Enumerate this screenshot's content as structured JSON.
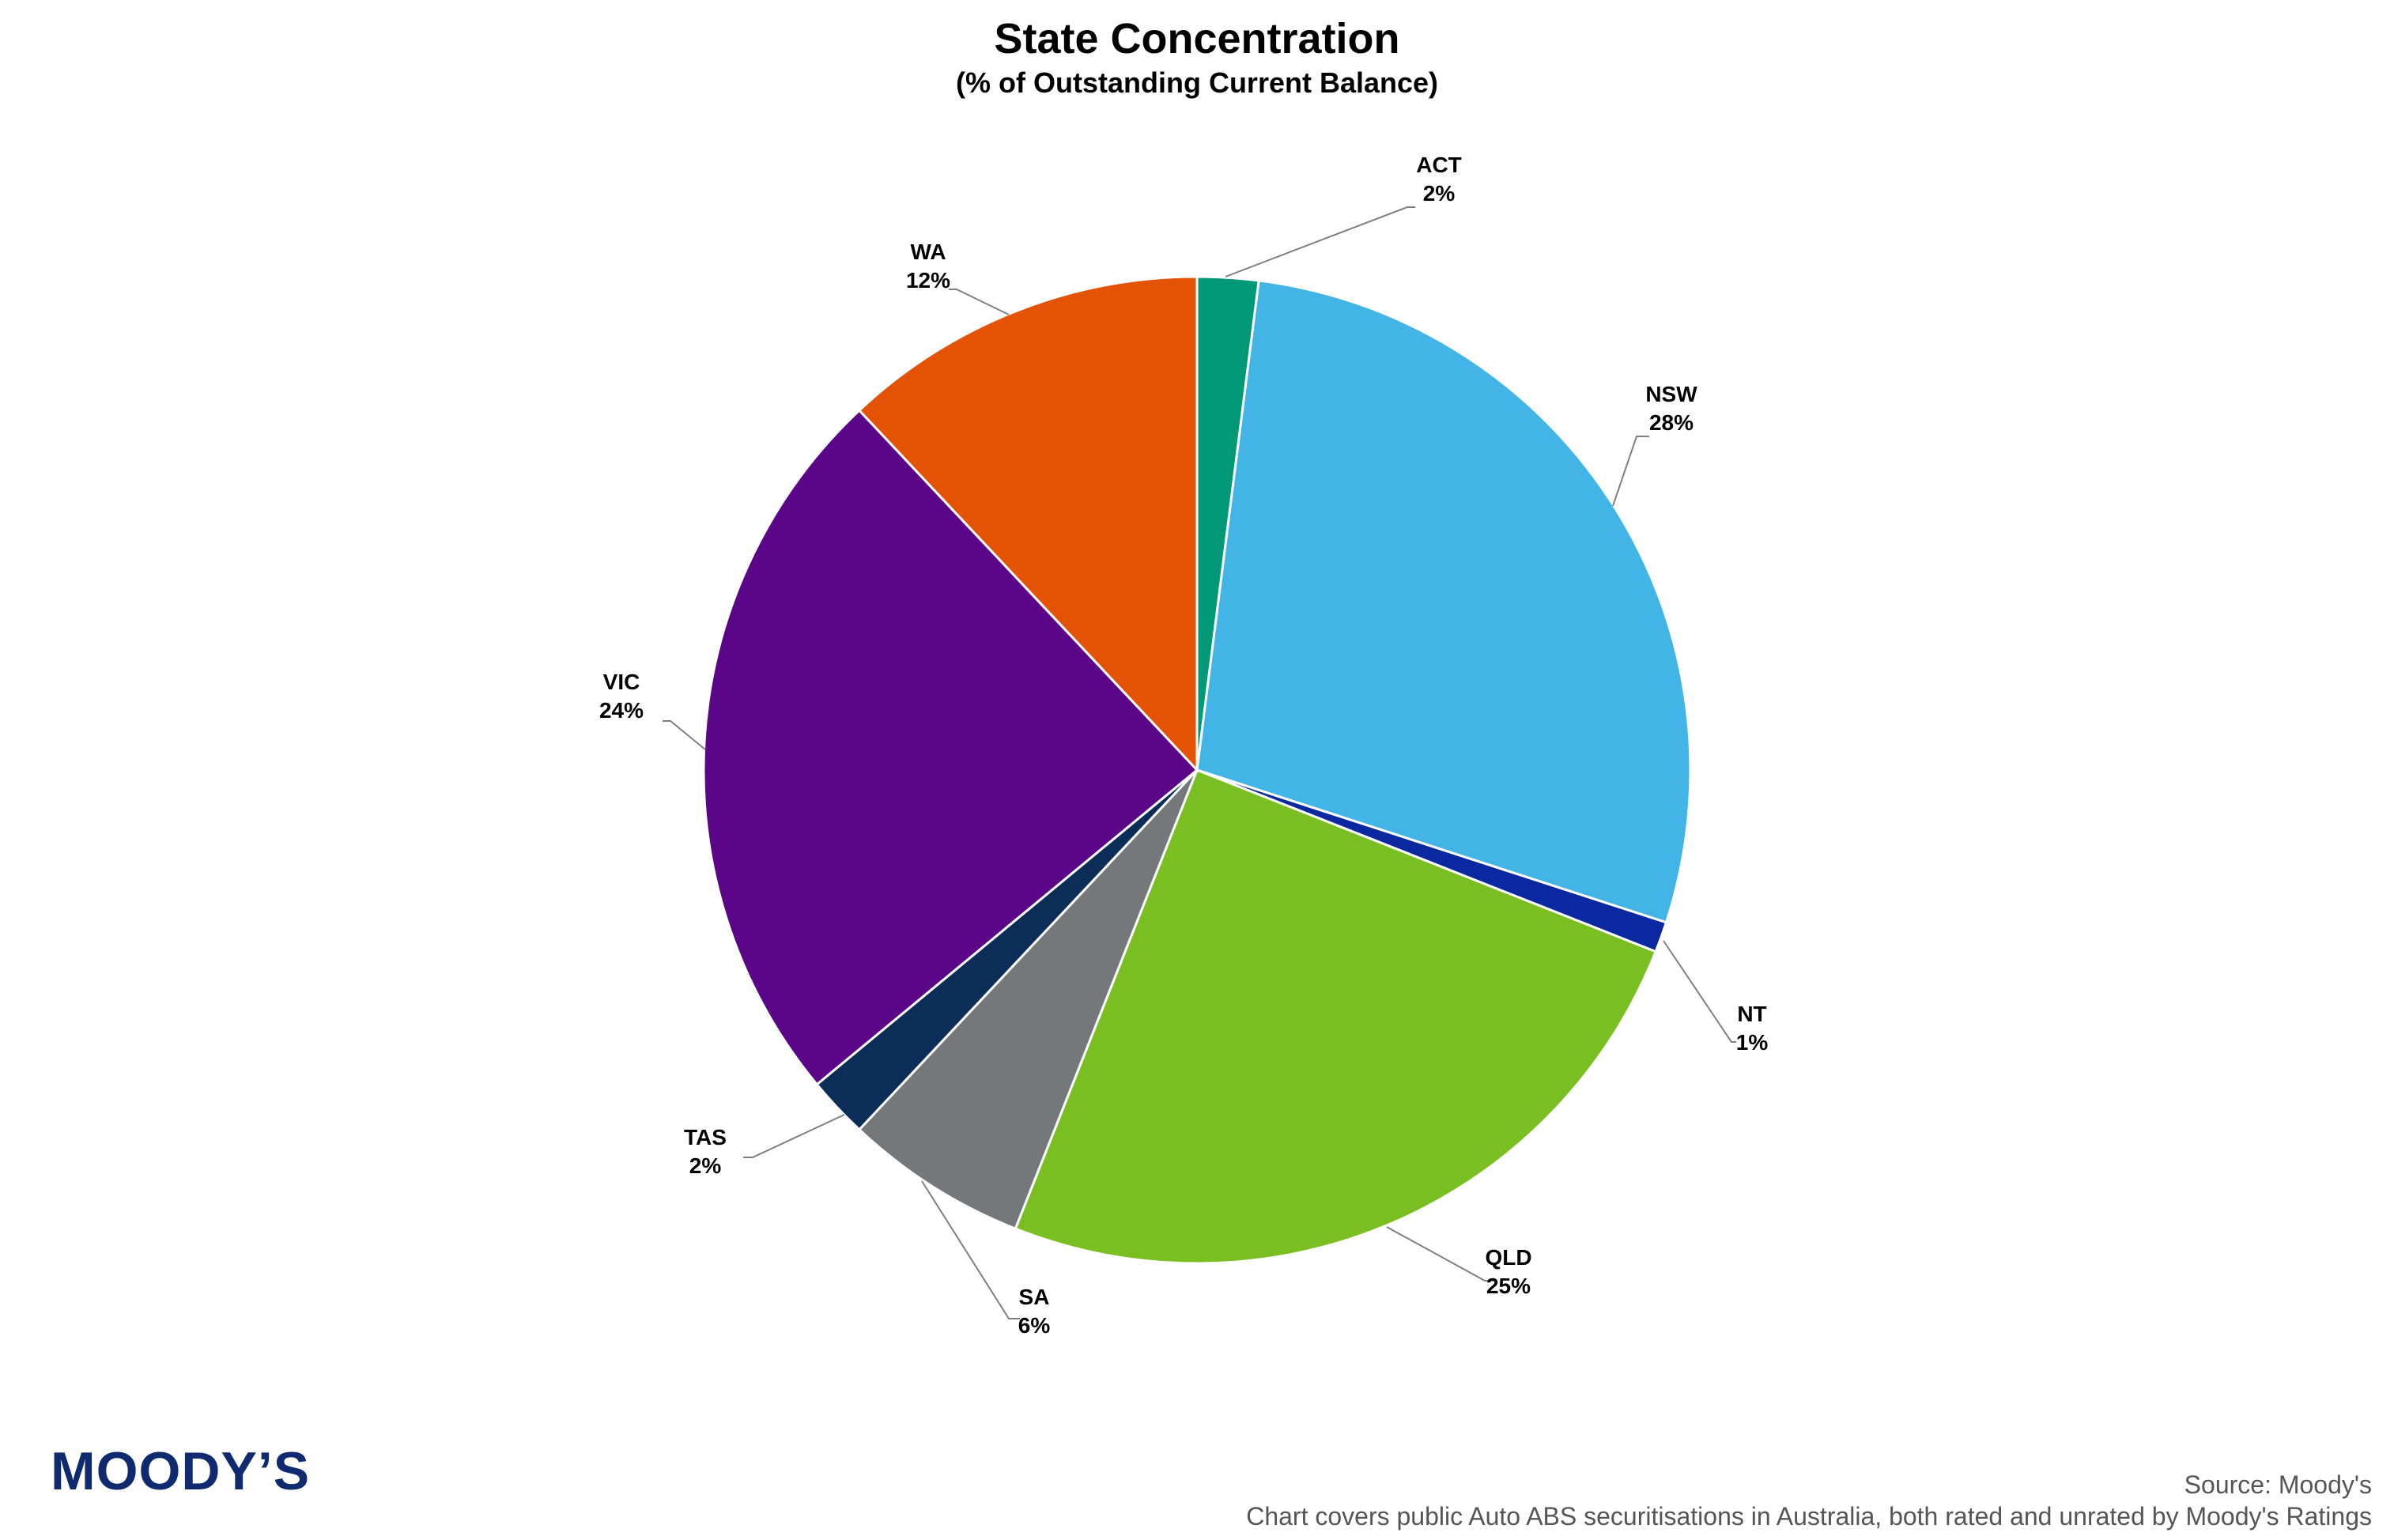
{
  "chart_data": {
    "type": "pie",
    "title": "State Concentration",
    "subtitle": "(% of Outstanding Current Balance)",
    "slices": [
      {
        "label": "ACT",
        "value": 2,
        "value_label": "2%",
        "color": "#009877"
      },
      {
        "label": "NSW",
        "value": 28,
        "value_label": "28%",
        "color": "#42b4e6"
      },
      {
        "label": "NT",
        "value": 1,
        "value_label": "1%",
        "color": "#0a28a0"
      },
      {
        "label": "QLD",
        "value": 25,
        "value_label": "25%",
        "color": "#7abf22"
      },
      {
        "label": "SA",
        "value": 6,
        "value_label": "6%",
        "color": "#75787b"
      },
      {
        "label": "TAS",
        "value": 2,
        "value_label": "2%",
        "color": "#0c2d58"
      },
      {
        "label": "VIC",
        "value": 24,
        "value_label": "24%",
        "color": "#5b0688"
      },
      {
        "label": "WA",
        "value": 12,
        "value_label": "12%",
        "color": "#e35205"
      }
    ]
  },
  "branding": {
    "logo_text": "MOODY’S"
  },
  "footer": {
    "source": "Source: Moody's",
    "note": "Chart covers public Auto ABS securitisations in Australia, both rated and unrated by Moody's Ratings"
  }
}
